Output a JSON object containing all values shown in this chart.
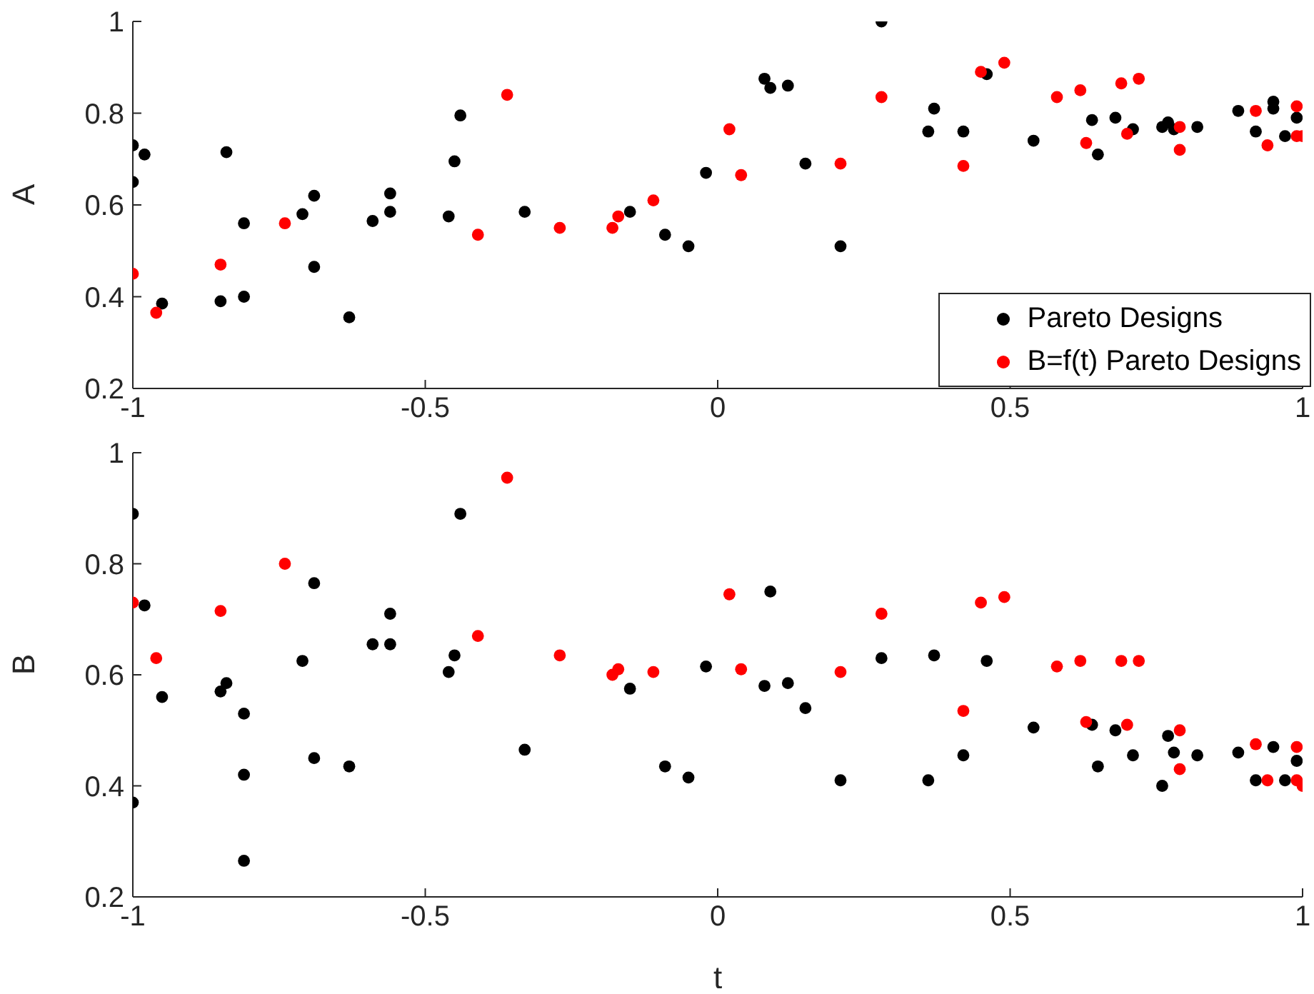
{
  "chart_data": [
    {
      "type": "scatter",
      "ylabel": "A",
      "xlim": [
        -1,
        1
      ],
      "xticks": [
        -1,
        -0.5,
        0,
        0.5,
        1
      ],
      "ylim": [
        0.2,
        1
      ],
      "yticks": [
        0.2,
        0.4,
        0.6,
        0.8,
        1
      ],
      "grid": false,
      "legend": "bottom right",
      "marker": "circle",
      "series": [
        {
          "name": "Pareto Designs",
          "color": "#000000",
          "x": [
            -1,
            -1,
            -0.98,
            -0.95,
            -0.85,
            -0.84,
            -0.81,
            -0.81,
            -0.71,
            -0.69,
            -0.69,
            -0.63,
            -0.59,
            -0.56,
            -0.56,
            -0.46,
            -0.45,
            -0.44,
            -0.33,
            -0.15,
            -0.09,
            -0.05,
            -0.02,
            0.08,
            0.09,
            0.12,
            0.15,
            0.21,
            0.28,
            0.36,
            0.37,
            0.42,
            0.46,
            0.54,
            0.64,
            0.65,
            0.68,
            0.71,
            0.76,
            0.77,
            0.78,
            0.82,
            0.89,
            0.92,
            0.95,
            0.95,
            0.97,
            0.99
          ],
          "values": [
            0.73,
            0.65,
            0.71,
            0.385,
            0.39,
            0.715,
            0.4,
            0.56,
            0.58,
            0.62,
            0.465,
            0.355,
            0.565,
            0.625,
            0.585,
            0.575,
            0.695,
            0.795,
            0.585,
            0.585,
            0.535,
            0.51,
            0.67,
            0.875,
            0.855,
            0.86,
            0.69,
            0.51,
            1.0,
            0.76,
            0.81,
            0.76,
            0.885,
            0.74,
            0.785,
            0.71,
            0.79,
            0.765,
            0.77,
            0.78,
            0.765,
            0.77,
            0.805,
            0.76,
            0.825,
            0.81,
            0.75,
            0.79
          ]
        },
        {
          "name": "B=f(t) Pareto Designs",
          "color": "#ff0000",
          "x": [
            -1,
            -0.96,
            -0.85,
            -0.74,
            -0.36,
            -0.41,
            -0.27,
            -0.18,
            -0.17,
            -0.11,
            0.02,
            0.04,
            0.21,
            0.28,
            0.42,
            0.45,
            0.49,
            0.58,
            0.62,
            0.63,
            0.69,
            0.7,
            0.72,
            0.79,
            0.79,
            0.92,
            0.94,
            0.99,
            0.99,
            1.0
          ],
          "values": [
            0.45,
            0.365,
            0.47,
            0.56,
            0.84,
            0.535,
            0.55,
            0.55,
            0.575,
            0.61,
            0.765,
            0.665,
            0.69,
            0.835,
            0.685,
            0.89,
            0.91,
            0.835,
            0.85,
            0.735,
            0.865,
            0.755,
            0.875,
            0.77,
            0.72,
            0.805,
            0.73,
            0.815,
            0.75,
            0.75
          ]
        }
      ]
    },
    {
      "type": "scatter",
      "xlabel": "t",
      "ylabel": "B",
      "xlim": [
        -1,
        1
      ],
      "xticks": [
        -1,
        -0.5,
        0,
        0.5,
        1
      ],
      "ylim": [
        0.2,
        1
      ],
      "yticks": [
        0.2,
        0.4,
        0.6,
        0.8,
        1
      ],
      "grid": false,
      "marker": "circle",
      "series": [
        {
          "color": "#000000",
          "x": [
            -1,
            -1,
            -0.98,
            -0.95,
            -0.85,
            -0.84,
            -0.81,
            -0.81,
            -0.81,
            -0.71,
            -0.69,
            -0.69,
            -0.63,
            -0.59,
            -0.56,
            -0.56,
            -0.46,
            -0.45,
            -0.44,
            -0.33,
            -0.15,
            -0.09,
            -0.05,
            -0.02,
            0.08,
            0.09,
            0.12,
            0.15,
            0.21,
            0.28,
            0.36,
            0.37,
            0.42,
            0.46,
            0.54,
            0.64,
            0.65,
            0.68,
            0.71,
            0.76,
            0.77,
            0.78,
            0.82,
            0.89,
            0.92,
            0.95,
            0.97,
            0.99
          ],
          "values": [
            0.89,
            0.37,
            0.725,
            0.56,
            0.57,
            0.585,
            0.53,
            0.42,
            0.265,
            0.625,
            0.765,
            0.45,
            0.435,
            0.655,
            0.71,
            0.655,
            0.605,
            0.635,
            0.89,
            0.465,
            0.575,
            0.435,
            0.415,
            0.615,
            0.58,
            0.75,
            0.585,
            0.54,
            0.41,
            0.63,
            0.41,
            0.635,
            0.455,
            0.625,
            0.505,
            0.51,
            0.435,
            0.5,
            0.455,
            0.4,
            0.49,
            0.46,
            0.455,
            0.46,
            0.41,
            0.47,
            0.41,
            0.445
          ]
        },
        {
          "color": "#ff0000",
          "x": [
            -1,
            -0.96,
            -0.85,
            -0.74,
            -0.36,
            -0.41,
            -0.27,
            -0.18,
            -0.17,
            -0.11,
            0.02,
            0.04,
            0.21,
            0.28,
            0.42,
            0.45,
            0.49,
            0.58,
            0.62,
            0.63,
            0.69,
            0.7,
            0.72,
            0.79,
            0.79,
            0.92,
            0.94,
            0.99,
            0.99,
            1.0
          ],
          "values": [
            0.73,
            0.63,
            0.715,
            0.8,
            0.955,
            0.67,
            0.635,
            0.6,
            0.61,
            0.605,
            0.745,
            0.61,
            0.605,
            0.71,
            0.535,
            0.73,
            0.74,
            0.615,
            0.625,
            0.515,
            0.625,
            0.51,
            0.625,
            0.5,
            0.43,
            0.475,
            0.41,
            0.47,
            0.41,
            0.4
          ]
        }
      ]
    }
  ]
}
